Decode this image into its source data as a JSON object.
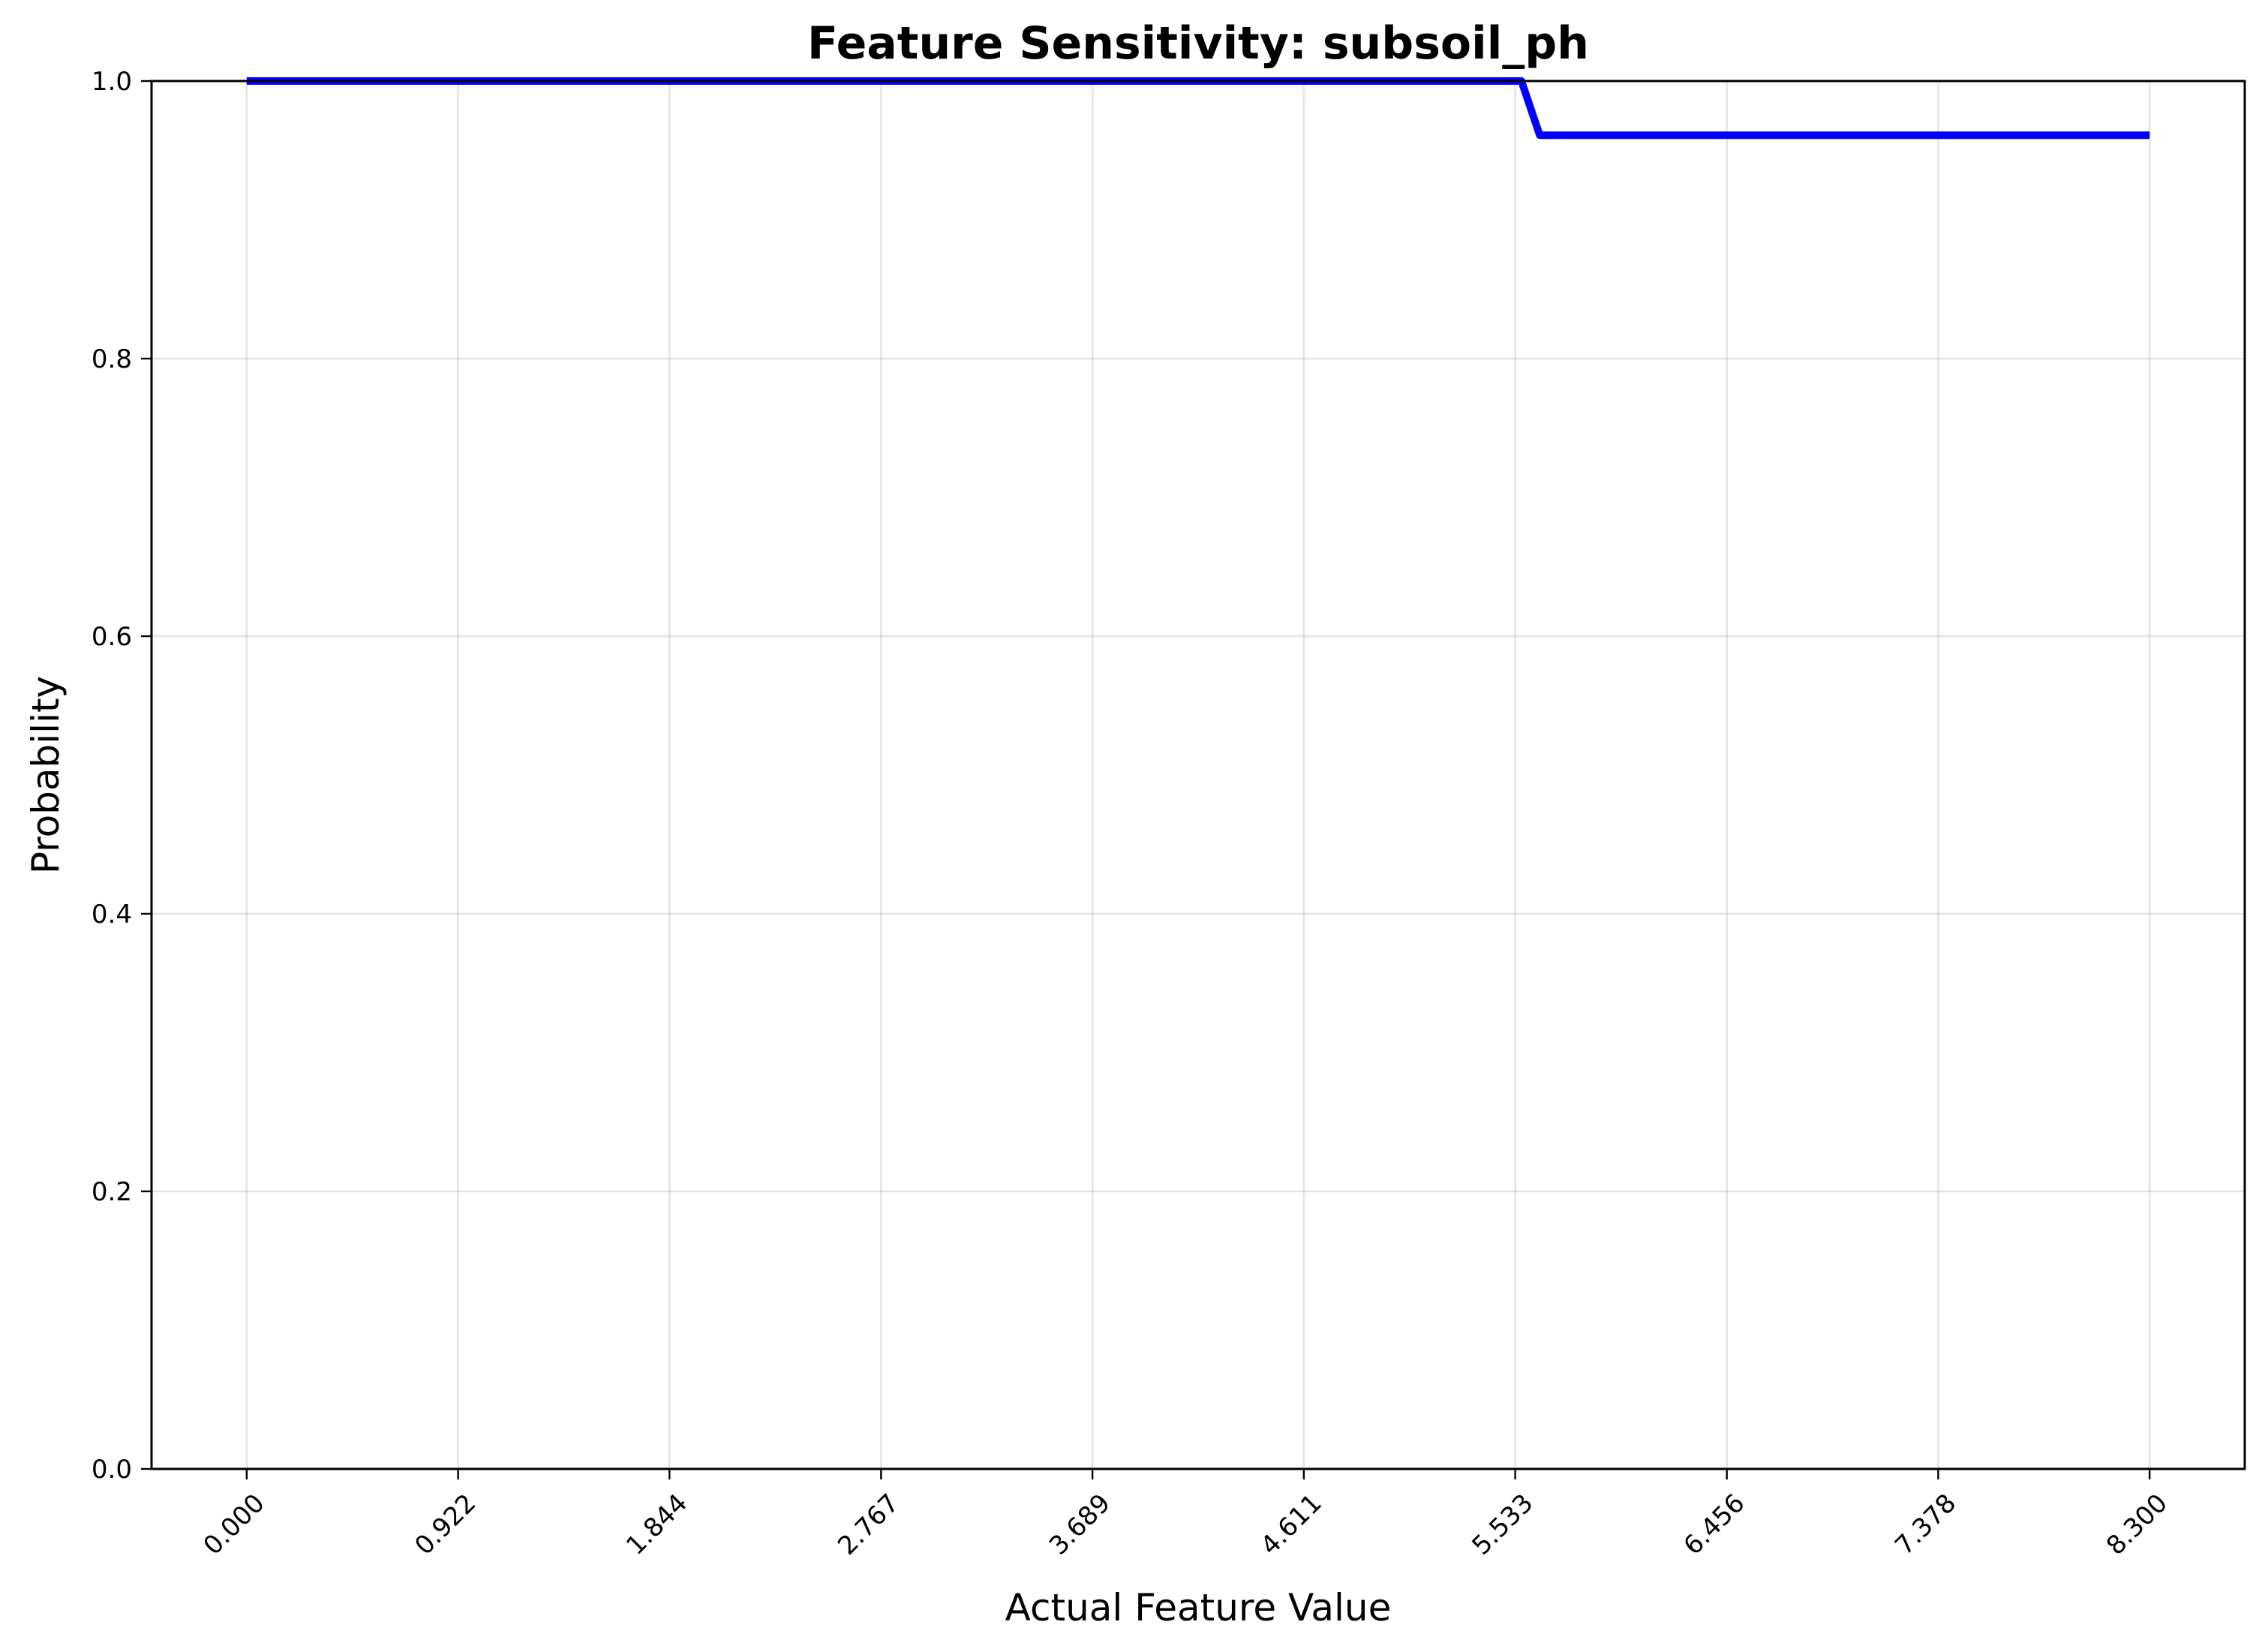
{
  "chart_data": {
    "type": "line",
    "title": "Feature Sensitivity: subsoil_ph",
    "xlabel": "Actual Feature Value",
    "ylabel": "Probability",
    "xlim": [
      -0.415,
      8.715
    ],
    "ylim": [
      0.0,
      1.0
    ],
    "x_ticks": [
      0.0,
      0.922,
      1.844,
      2.767,
      3.689,
      4.611,
      5.533,
      6.456,
      7.378,
      8.3
    ],
    "x_tick_labels": [
      "0.000",
      "0.922",
      "1.844",
      "2.767",
      "3.689",
      "4.611",
      "5.533",
      "6.456",
      "7.378",
      "8.300"
    ],
    "y_ticks": [
      0.0,
      0.2,
      0.4,
      0.6,
      0.8,
      1.0
    ],
    "y_tick_labels": [
      "0.0",
      "0.2",
      "0.4",
      "0.6",
      "0.8",
      "1.0"
    ],
    "grid": true,
    "x_tick_rotation": 45,
    "series": [
      {
        "color": "#0000ff",
        "x": [
          0.0,
          5.53,
          5.56,
          5.64,
          8.3
        ],
        "y": [
          1.0,
          1.0,
          1.0,
          0.961,
          0.961
        ]
      }
    ]
  }
}
